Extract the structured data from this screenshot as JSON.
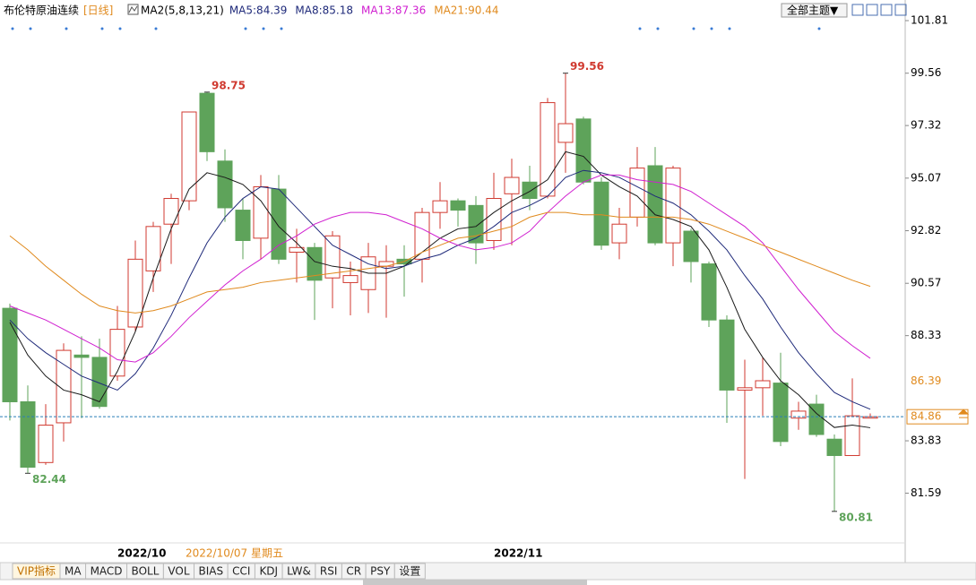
{
  "header": {
    "title": "布伦特原油连续",
    "period": "[日线]",
    "indicator": "MA2(5,8,13,21)",
    "theme_button": "全部主题▼"
  },
  "chart_data": {
    "type": "candlestick",
    "categories": [
      null,
      null,
      null,
      null,
      null,
      null,
      null,
      "2022/10",
      null,
      null,
      null,
      null,
      null,
      null,
      null,
      null,
      null,
      null,
      null,
      null,
      null,
      null,
      null,
      null,
      null,
      null,
      null,
      null,
      "2022/11",
      null,
      null,
      null,
      null,
      null,
      null,
      null,
      null,
      null,
      null,
      null,
      null,
      null,
      null,
      null,
      null,
      null,
      null,
      null,
      null
    ],
    "open": [
      89.5,
      85.5,
      82.9,
      84.6,
      87.5,
      87.4,
      86.6,
      88.7,
      91.1,
      93.1,
      94.1,
      98.7,
      95.8,
      93.7,
      92.5,
      94.6,
      91.9,
      92.1,
      90.8,
      90.6,
      90.3,
      91.3,
      91.6,
      91.6,
      93.6,
      94.1,
      93.9,
      92.4,
      94.4,
      94.9,
      94.3,
      96.6,
      97.6,
      94.9,
      92.3,
      93.4,
      95.6,
      92.3,
      92.8,
      91.4,
      89.0,
      86.0,
      86.1,
      86.3,
      84.8,
      85.4,
      83.9,
      83.2,
      84.8
    ],
    "high": [
      89.7,
      86.2,
      85.4,
      88.0,
      88.3,
      88.2,
      89.6,
      92.4,
      93.2,
      94.4,
      97.9,
      98.75,
      96.3,
      94.2,
      95.2,
      95.2,
      92.9,
      92.3,
      92.8,
      91.5,
      92.3,
      92.2,
      92.2,
      93.8,
      94.9,
      94.2,
      94.3,
      95.3,
      95.9,
      95.6,
      98.5,
      99.56,
      97.7,
      95.1,
      93.8,
      96.4,
      96.4,
      95.6,
      92.9,
      91.5,
      89.2,
      87.3,
      87.4,
      87.6,
      85.5,
      85.8,
      84.1,
      86.5,
      85.0
    ],
    "low": [
      84.7,
      82.44,
      82.8,
      83.8,
      84.8,
      85.2,
      86.4,
      88.5,
      90.2,
      91.4,
      93.7,
      95.8,
      93.2,
      91.6,
      91.6,
      91.4,
      90.6,
      89.0,
      89.5,
      89.2,
      89.3,
      89.1,
      90.0,
      90.6,
      92.9,
      93.0,
      91.4,
      92.0,
      92.2,
      93.7,
      94.2,
      95.3,
      94.8,
      92.0,
      91.6,
      93.0,
      92.2,
      91.3,
      90.6,
      88.7,
      84.6,
      82.2,
      84.9,
      83.6,
      84.3,
      84.0,
      80.81,
      83.2,
      84.8
    ],
    "close": [
      85.5,
      82.7,
      84.5,
      87.7,
      87.4,
      85.3,
      88.6,
      91.6,
      93.0,
      94.2,
      97.9,
      96.2,
      93.8,
      92.4,
      94.7,
      91.6,
      92.1,
      90.7,
      92.6,
      90.9,
      91.7,
      91.5,
      91.4,
      93.6,
      94.1,
      93.7,
      92.3,
      94.2,
      95.1,
      94.2,
      98.3,
      97.4,
      94.9,
      92.2,
      93.1,
      95.5,
      92.3,
      95.5,
      91.5,
      89.0,
      86.0,
      86.1,
      86.4,
      83.8,
      85.1,
      84.1,
      83.2,
      84.9,
      84.86
    ],
    "up_color": "#d03a30",
    "down_color": "#5ea35a",
    "series": [
      {
        "name": "MA5",
        "label": "MA5:84.39",
        "color": "#1a1a1a",
        "legend_color": "#1f2a7a",
        "values": [
          88.9,
          87.5,
          86.6,
          86.0,
          85.8,
          85.5,
          86.8,
          88.5,
          90.8,
          92.9,
          94.6,
          95.3,
          95.1,
          94.8,
          94.1,
          93.0,
          92.3,
          91.5,
          91.3,
          91.2,
          91.0,
          91.0,
          91.3,
          91.9,
          92.5,
          92.9,
          93.0,
          93.6,
          94.1,
          94.5,
          95.0,
          96.2,
          96.0,
          95.2,
          94.7,
          94.3,
          93.5,
          93.3,
          93.0,
          92.0,
          90.4,
          88.6,
          87.4,
          86.4,
          85.8,
          85.0,
          84.4,
          84.5,
          84.39
        ]
      },
      {
        "name": "MA8",
        "label": "MA8:85.18",
        "color": "#1f2a7a",
        "legend_color": "#1f2a7a",
        "values": [
          89.0,
          88.2,
          87.6,
          87.1,
          86.6,
          86.3,
          86.0,
          86.7,
          87.8,
          89.2,
          90.8,
          92.3,
          93.4,
          94.2,
          94.7,
          94.6,
          93.8,
          93.0,
          92.2,
          91.8,
          91.4,
          91.2,
          91.3,
          91.6,
          91.8,
          92.2,
          92.5,
          93.0,
          93.6,
          93.9,
          94.3,
          95.1,
          95.4,
          95.3,
          95.1,
          94.7,
          94.3,
          94.0,
          93.5,
          92.8,
          92.0,
          90.9,
          89.9,
          88.7,
          87.6,
          86.7,
          85.9,
          85.5,
          85.18
        ]
      },
      {
        "name": "MA13",
        "label": "MA13:87.36",
        "color": "#d020d0",
        "legend_color": "#d020d0",
        "values": [
          89.6,
          89.3,
          89.0,
          88.6,
          88.2,
          87.8,
          87.3,
          87.2,
          87.6,
          88.3,
          89.1,
          89.8,
          90.5,
          91.1,
          91.6,
          92.2,
          92.6,
          93.1,
          93.4,
          93.6,
          93.6,
          93.5,
          93.2,
          92.9,
          92.5,
          92.2,
          92.0,
          92.1,
          92.3,
          92.8,
          93.6,
          94.3,
          94.9,
          95.2,
          95.2,
          95.0,
          94.9,
          94.8,
          94.5,
          94.0,
          93.5,
          93.0,
          92.3,
          91.3,
          90.3,
          89.4,
          88.5,
          87.9,
          87.36
        ]
      },
      {
        "name": "MA21",
        "label": "MA21:90.44",
        "color": "#e08a1e",
        "legend_color": "#e08a1e",
        "values": [
          92.6,
          92.0,
          91.3,
          90.7,
          90.1,
          89.6,
          89.4,
          89.3,
          89.4,
          89.6,
          89.9,
          90.2,
          90.3,
          90.4,
          90.6,
          90.7,
          90.8,
          90.9,
          91.0,
          91.1,
          91.2,
          91.3,
          91.5,
          91.9,
          92.2,
          92.5,
          92.6,
          92.8,
          93.0,
          93.4,
          93.6,
          93.6,
          93.5,
          93.5,
          93.4,
          93.4,
          93.4,
          93.4,
          93.3,
          93.1,
          92.8,
          92.5,
          92.2,
          91.9,
          91.6,
          91.3,
          91.0,
          90.7,
          90.44
        ]
      }
    ],
    "ylim": [
      79.5,
      102.5
    ],
    "yticks": [
      101.81,
      99.56,
      97.32,
      95.07,
      92.82,
      90.57,
      88.33,
      83.83,
      81.59
    ],
    "annotations": [
      98.75,
      82.44,
      99.56,
      80.81
    ],
    "orange_price": 86.39,
    "current_price": 84.86,
    "crosshair_label": "2022/10/07 星期五"
  },
  "tabs": [
    "VIP指标",
    "MA",
    "MACD",
    "BOLL",
    "VOL",
    "BIAS",
    "CCI",
    "KDJ",
    "LW&",
    "RSI",
    "CR",
    "PSY",
    "设置"
  ]
}
